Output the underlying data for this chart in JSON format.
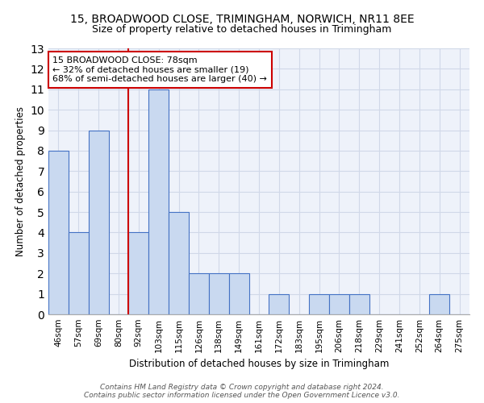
{
  "title": "15, BROADWOOD CLOSE, TRIMINGHAM, NORWICH, NR11 8EE",
  "subtitle": "Size of property relative to detached houses in Trimingham",
  "xlabel": "Distribution of detached houses by size in Trimingham",
  "ylabel": "Number of detached properties",
  "categories": [
    "46sqm",
    "57sqm",
    "69sqm",
    "80sqm",
    "92sqm",
    "103sqm",
    "115sqm",
    "126sqm",
    "138sqm",
    "149sqm",
    "161sqm",
    "172sqm",
    "183sqm",
    "195sqm",
    "206sqm",
    "218sqm",
    "229sqm",
    "241sqm",
    "252sqm",
    "264sqm",
    "275sqm"
  ],
  "values": [
    8,
    4,
    9,
    0,
    4,
    11,
    5,
    2,
    2,
    2,
    0,
    1,
    0,
    1,
    1,
    1,
    0,
    0,
    0,
    1,
    0
  ],
  "bar_color": "#c9d9f0",
  "bar_edge_color": "#4472c4",
  "marker_index": 3,
  "marker_color": "#cc0000",
  "ylim": [
    0,
    13
  ],
  "yticks": [
    0,
    1,
    2,
    3,
    4,
    5,
    6,
    7,
    8,
    9,
    10,
    11,
    12,
    13
  ],
  "annotation_text": "15 BROADWOOD CLOSE: 78sqm\n← 32% of detached houses are smaller (19)\n68% of semi-detached houses are larger (40) →",
  "annotation_box_color": "#ffffff",
  "annotation_box_edge": "#cc0000",
  "footer": "Contains HM Land Registry data © Crown copyright and database right 2024.\nContains public sector information licensed under the Open Government Licence v3.0.",
  "grid_color": "#d0d8e8",
  "background_color": "#eef2fa",
  "title_fontsize": 10,
  "subtitle_fontsize": 9
}
